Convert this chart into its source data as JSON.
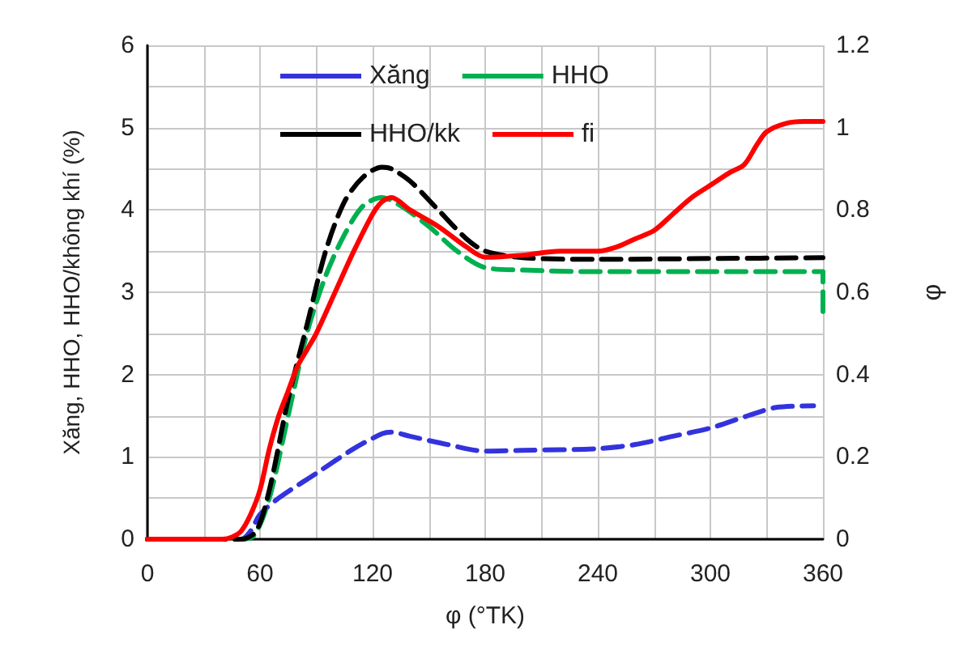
{
  "chart_data": {
    "type": "line",
    "xlabel": "φ (°TK)",
    "ylabel": "Xăng, HHO, HHO/không khí (%)",
    "y2label": "φ",
    "xlim": [
      0,
      360
    ],
    "xticks": [
      0,
      {
        "value": 30,
        "label": null
      },
      60,
      {
        "value": 90,
        "label": null
      },
      120,
      {
        "value": 150,
        "label": null
      },
      180,
      {
        "value": 210,
        "label": null
      },
      240,
      {
        "value": 270,
        "label": null
      },
      300,
      {
        "value": 330,
        "label": null
      },
      360
    ],
    "ylim": [
      0,
      6
    ],
    "yticks": [
      0,
      {
        "value": 0.5,
        "label": null
      },
      1,
      {
        "value": 1.5,
        "label": null
      },
      2,
      {
        "value": 2.5,
        "label": null
      },
      3,
      {
        "value": 3.5,
        "label": null
      },
      4,
      {
        "value": 4.5,
        "label": null
      },
      5,
      {
        "value": 5.5,
        "label": null
      },
      6
    ],
    "y2lim": [
      0,
      1.2
    ],
    "y2ticks": [
      0,
      0.2,
      0.4,
      0.6,
      0.8,
      1,
      1.2
    ],
    "grid": true,
    "legend": "top",
    "marker": "none",
    "series": [
      {
        "name": "Xăng",
        "color": "#3333dd",
        "line_style": "dashed",
        "x": [
          0,
          50,
          55,
          60,
          70,
          90,
          110,
          125,
          130,
          140,
          160,
          180,
          200,
          240,
          260,
          280,
          300,
          320,
          335,
          355
        ],
        "values": [
          0,
          0,
          0.1,
          0.3,
          0.5,
          0.8,
          1.1,
          1.28,
          1.3,
          1.25,
          1.15,
          1.07,
          1.08,
          1.1,
          1.15,
          1.25,
          1.35,
          1.5,
          1.6,
          1.62
        ]
      },
      {
        "name": "HHO",
        "color": "#00b050",
        "line_style": "dashed",
        "x": [
          0,
          50,
          57,
          65,
          75,
          85,
          95,
          105,
          115,
          125,
          135,
          150,
          165,
          180,
          200,
          240,
          300,
          360,
          360
        ],
        "values": [
          0,
          0,
          0.05,
          0.5,
          1.5,
          2.5,
          3.2,
          3.7,
          4.05,
          4.15,
          4.05,
          3.8,
          3.5,
          3.3,
          3.27,
          3.25,
          3.25,
          3.25,
          2.7
        ]
      },
      {
        "name": "HHO/kk",
        "color": "#000000",
        "line_style": "dashed",
        "x": [
          0,
          50,
          58,
          65,
          75,
          85,
          95,
          105,
          115,
          125,
          130,
          140,
          155,
          170,
          180,
          200,
          240,
          300,
          360
        ],
        "values": [
          0,
          0,
          0.1,
          0.6,
          1.7,
          2.6,
          3.5,
          4.1,
          4.4,
          4.52,
          4.5,
          4.35,
          4,
          3.65,
          3.5,
          3.42,
          3.4,
          3.41,
          3.42
        ]
      },
      {
        "name": "fi",
        "color": "#ff0000",
        "line_style": "solid",
        "axis": "y2",
        "x": [
          0,
          40,
          45,
          50,
          55,
          60,
          65,
          70,
          75,
          80,
          85,
          90,
          100,
          110,
          120,
          125,
          130,
          140,
          155,
          170,
          180,
          200,
          220,
          240,
          250,
          260,
          270,
          280,
          290,
          300,
          310,
          318,
          325,
          330,
          340,
          350,
          360
        ],
        "values": [
          0,
          0,
          0.005,
          0.02,
          0.06,
          0.12,
          0.22,
          0.3,
          0.36,
          0.42,
          0.46,
          0.5,
          0.6,
          0.7,
          0.79,
          0.82,
          0.83,
          0.8,
          0.76,
          0.71,
          0.685,
          0.69,
          0.7,
          0.7,
          0.71,
          0.73,
          0.75,
          0.79,
          0.83,
          0.86,
          0.89,
          0.91,
          0.96,
          0.99,
          1.01,
          1.015,
          1.015
        ]
      }
    ]
  }
}
